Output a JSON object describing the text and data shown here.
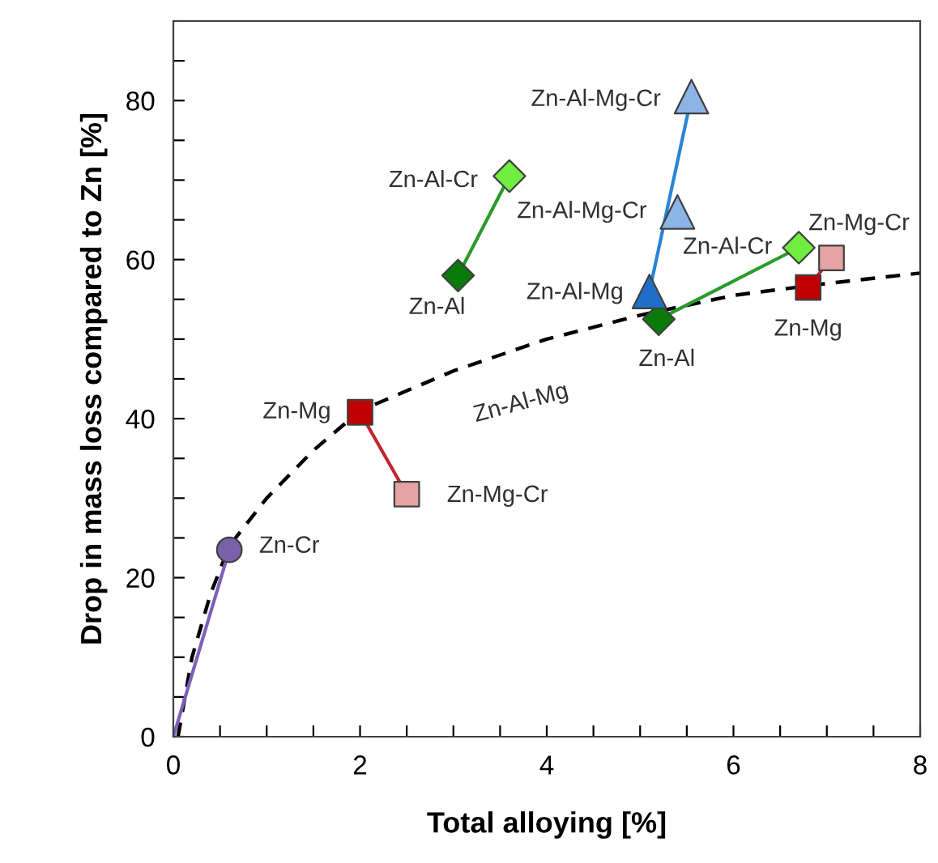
{
  "chart_data": {
    "type": "scatter",
    "xlabel": "Total alloying [%]",
    "ylabel": "Drop in mass loss compared to Zn [%]",
    "xlim": [
      0,
      8
    ],
    "ylim": [
      0,
      90
    ],
    "xticks": [
      0,
      {
        "value": 0.5,
        "label": null
      },
      {
        "value": 1,
        "label": null
      },
      {
        "value": 1.5,
        "label": null
      },
      2,
      {
        "value": 2.5,
        "label": null
      },
      {
        "value": 3,
        "label": null
      },
      {
        "value": 3.5,
        "label": null
      },
      4,
      {
        "value": 4.5,
        "label": null
      },
      {
        "value": 5,
        "label": null
      },
      {
        "value": 5.5,
        "label": null
      },
      6,
      {
        "value": 6.5,
        "label": null
      },
      {
        "value": 7,
        "label": null
      },
      {
        "value": 7.5,
        "label": null
      },
      8
    ],
    "yticks": [
      0,
      {
        "value": 5,
        "label": null
      },
      {
        "value": 10,
        "label": null
      },
      {
        "value": 15,
        "label": null
      },
      20,
      {
        "value": 25,
        "label": null
      },
      {
        "value": 30,
        "label": null
      },
      {
        "value": 35,
        "label": null
      },
      40,
      {
        "value": 45,
        "label": null
      },
      {
        "value": 50,
        "label": null
      },
      {
        "value": 55,
        "label": null
      },
      60,
      {
        "value": 65,
        "label": null
      },
      {
        "value": 70,
        "label": null
      },
      {
        "value": 75,
        "label": null
      },
      80,
      {
        "value": 85,
        "label": null
      },
      {
        "value": 90,
        "label": null
      }
    ],
    "grid": false,
    "legend": false,
    "series": [
      {
        "type": "line",
        "line_style": "dashed",
        "marker": "none",
        "color": "#000000",
        "x": [
          0.05,
          0.2,
          0.4,
          0.6,
          1,
          1.5,
          2,
          3,
          4,
          5,
          6,
          7,
          8
        ],
        "values": [
          0,
          10,
          18,
          24,
          30,
          36,
          41,
          46,
          50,
          53,
          55.5,
          57,
          58.3
        ]
      },
      {
        "type": "line",
        "line_style": "solid",
        "marker": "none",
        "color": "#7e5fb8",
        "x": [
          0,
          0.6
        ],
        "values": [
          0,
          23.5
        ]
      },
      {
        "type": "line",
        "line_style": "solid",
        "marker": "none",
        "color": "#c0282d",
        "x": [
          2,
          2.5
        ],
        "values": [
          40.8,
          30.5
        ]
      },
      {
        "type": "line",
        "line_style": "solid",
        "marker": "none",
        "color": "#2a9a2a",
        "x": [
          3.05,
          3.6
        ],
        "values": [
          58,
          70.5
        ]
      },
      {
        "type": "line",
        "line_style": "solid",
        "marker": "none",
        "color": "#2a84d8",
        "x": [
          5.1,
          5.55
        ],
        "values": [
          56,
          80.5
        ]
      },
      {
        "type": "line",
        "line_style": "solid",
        "marker": "none",
        "color": "#2a9a2a",
        "x": [
          5.2,
          6.7
        ],
        "values": [
          52.5,
          61.5
        ]
      },
      {
        "type": "line",
        "line_style": "solid",
        "marker": "none",
        "color": "#c0282d",
        "x": [
          6.8,
          7.05
        ],
        "values": [
          56.5,
          60.2
        ]
      },
      {
        "marker": "circle",
        "x": [
          0.6
        ],
        "values": [
          23.5
        ],
        "colors": [
          "#7b62a8"
        ]
      },
      {
        "marker": "square",
        "x": [
          2,
          2.5,
          6.8,
          7.05
        ],
        "values": [
          40.8,
          30.5,
          56.5,
          60.2
        ],
        "colors": [
          "#c00000",
          "#e6a3a3",
          "#c00000",
          "#e6a3a3"
        ]
      },
      {
        "marker": "diamond",
        "x": [
          3.05,
          3.6,
          5.2,
          6.7
        ],
        "values": [
          58,
          70.5,
          52.5,
          61.5
        ],
        "colors": [
          "#0a7a0a",
          "#70ee40",
          "#0a7a0a",
          "#70ee40"
        ]
      },
      {
        "marker": "triangle",
        "x": [
          5.1,
          5.4,
          5.55
        ],
        "values": [
          56,
          66,
          80.5
        ],
        "colors": [
          "#1f6fc8",
          "#8cb4e6",
          "#8cb4e6"
        ]
      }
    ],
    "annotations": [
      {
        "text": "Zn-Cr",
        "x": 0.6,
        "y": 23.5
      },
      {
        "text": "Zn-Mg",
        "x": 2,
        "y": 40.8
      },
      {
        "text": "Zn-Mg-Cr",
        "x": 2.5,
        "y": 30.5
      },
      {
        "text": "Zn-Al-Mg",
        "x": 3.5,
        "y": 48
      },
      {
        "text": "Zn-Al-Cr",
        "x": 3.6,
        "y": 70.5
      },
      {
        "text": "Zn-Al",
        "x": 3.05,
        "y": 58
      },
      {
        "text": "Zn-Al-Mg-Cr",
        "x": 5.55,
        "y": 80.5
      },
      {
        "text": "Zn-Al-Mg-Cr",
        "x": 5.4,
        "y": 66
      },
      {
        "text": "Zn-Al-Mg",
        "x": 5.1,
        "y": 56
      },
      {
        "text": "Zn-Al",
        "x": 5.2,
        "y": 52.5
      },
      {
        "text": "Zn-Al-Cr",
        "x": 6.7,
        "y": 61.5
      },
      {
        "text": "Zn-Mg-Cr",
        "x": 7.05,
        "y": 60.2
      },
      {
        "text": "Zn-Mg",
        "x": 6.8,
        "y": 56.5
      }
    ]
  }
}
